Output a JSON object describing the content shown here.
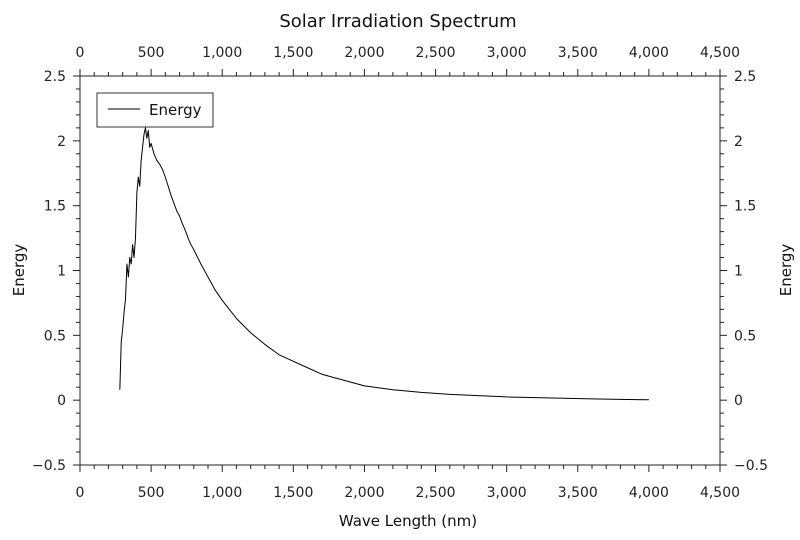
{
  "chart_data": {
    "type": "line",
    "title": "Solar Irradiation Spectrum",
    "xlabel": "Wave Length (nm)",
    "ylabel": "Energy",
    "ylabel_right": "Energy",
    "xlim": [
      0,
      4500
    ],
    "ylim": [
      -0.5,
      2.5
    ],
    "x_ticks": [
      0,
      500,
      1000,
      1500,
      2000,
      2500,
      3000,
      3500,
      4000,
      4500
    ],
    "x_tick_labels": [
      "0",
      "500",
      "1,000",
      "1,500",
      "2,000",
      "2,500",
      "3,000",
      "3,500",
      "4,000",
      "4,500"
    ],
    "y_ticks": [
      -0.5,
      0,
      0.5,
      1,
      1.5,
      2,
      2.5
    ],
    "y_tick_labels": [
      "−0.5",
      "0",
      "0.5",
      "1",
      "1.5",
      "2",
      "2.5"
    ],
    "grid": false,
    "legend": {
      "position": "top-left",
      "entries": [
        "Energy"
      ]
    },
    "series": [
      {
        "name": "Energy",
        "color": "#000000",
        "x": [
          280,
          290,
          300,
          310,
          320,
          330,
          340,
          350,
          360,
          370,
          380,
          390,
          400,
          410,
          420,
          430,
          440,
          450,
          460,
          470,
          480,
          490,
          500,
          520,
          540,
          560,
          580,
          600,
          620,
          640,
          660,
          680,
          700,
          720,
          740,
          760,
          780,
          800,
          850,
          900,
          950,
          1000,
          1100,
          1200,
          1300,
          1400,
          1500,
          1600,
          1700,
          1800,
          1900,
          2000,
          2200,
          2400,
          2600,
          2800,
          3000,
          3200,
          3400,
          3600,
          3800,
          4000
        ],
        "y": [
          0.08,
          0.45,
          0.55,
          0.68,
          0.78,
          1.05,
          0.95,
          1.1,
          1.05,
          1.2,
          1.1,
          1.25,
          1.6,
          1.72,
          1.65,
          1.85,
          1.95,
          2.05,
          2.1,
          2.02,
          2.08,
          1.95,
          1.98,
          1.9,
          1.85,
          1.82,
          1.78,
          1.72,
          1.65,
          1.58,
          1.52,
          1.46,
          1.42,
          1.36,
          1.31,
          1.25,
          1.2,
          1.16,
          1.05,
          0.95,
          0.85,
          0.77,
          0.63,
          0.52,
          0.43,
          0.35,
          0.3,
          0.25,
          0.2,
          0.17,
          0.14,
          0.11,
          0.08,
          0.06,
          0.045,
          0.035,
          0.025,
          0.02,
          0.015,
          0.01,
          0.006,
          0.003
        ]
      }
    ]
  }
}
